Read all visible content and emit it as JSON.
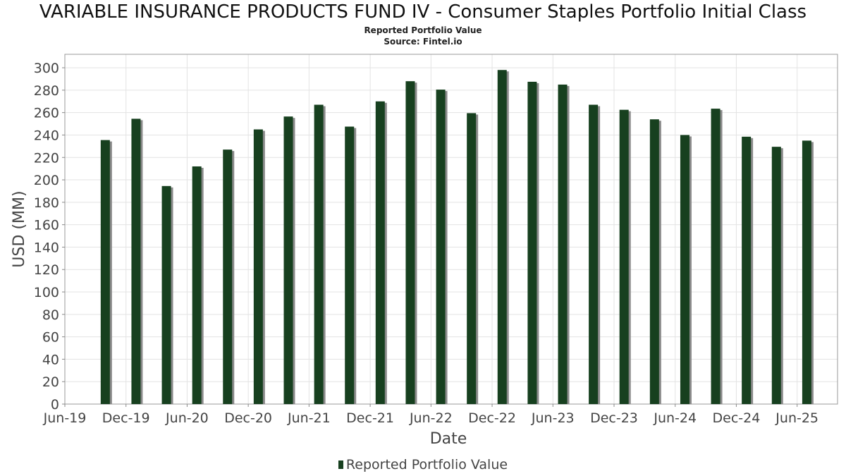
{
  "chart_data": {
    "type": "bar",
    "title": "VARIABLE INSURANCE PRODUCTS FUND IV - Consumer Staples Portfolio Initial Class",
    "subtitle": "Reported Portfolio Value",
    "source": "Source: Fintel.io",
    "xlabel": "Date",
    "ylabel": "USD (MM)",
    "ylim": [
      0,
      312
    ],
    "yticks": [
      0,
      20,
      40,
      60,
      80,
      100,
      120,
      140,
      160,
      180,
      200,
      220,
      240,
      260,
      280,
      300
    ],
    "xlim": [
      "2019-06-01",
      "2025-09-30"
    ],
    "xticks": [
      {
        "label": "Jun-19",
        "date": "2019-06-01"
      },
      {
        "label": "Dec-19",
        "date": "2019-12-01"
      },
      {
        "label": "Jun-20",
        "date": "2020-06-01"
      },
      {
        "label": "Dec-20",
        "date": "2020-12-01"
      },
      {
        "label": "Jun-21",
        "date": "2021-06-01"
      },
      {
        "label": "Dec-21",
        "date": "2021-12-01"
      },
      {
        "label": "Jun-22",
        "date": "2022-06-01"
      },
      {
        "label": "Dec-22",
        "date": "2022-12-01"
      },
      {
        "label": "Jun-23",
        "date": "2023-06-01"
      },
      {
        "label": "Dec-23",
        "date": "2023-12-01"
      },
      {
        "label": "Jun-24",
        "date": "2024-06-01"
      },
      {
        "label": "Dec-24",
        "date": "2024-12-01"
      },
      {
        "label": "Jun-25",
        "date": "2025-06-01"
      }
    ],
    "grid": true,
    "legend_position": "bottom",
    "series": [
      {
        "name": "Reported Portfolio Value",
        "color": "#17401f",
        "points": [
          {
            "x": "2019-09-30",
            "y": 235.5
          },
          {
            "x": "2019-12-31",
            "y": 254.5
          },
          {
            "x": "2020-03-31",
            "y": 194.5
          },
          {
            "x": "2020-06-30",
            "y": 212.0
          },
          {
            "x": "2020-09-30",
            "y": 227.0
          },
          {
            "x": "2020-12-31",
            "y": 245.0
          },
          {
            "x": "2021-03-31",
            "y": 256.5
          },
          {
            "x": "2021-06-30",
            "y": 267.0
          },
          {
            "x": "2021-09-30",
            "y": 247.5
          },
          {
            "x": "2021-12-31",
            "y": 270.0
          },
          {
            "x": "2022-03-31",
            "y": 288.0
          },
          {
            "x": "2022-06-30",
            "y": 280.5
          },
          {
            "x": "2022-09-30",
            "y": 259.5
          },
          {
            "x": "2022-12-31",
            "y": 298.0
          },
          {
            "x": "2023-03-31",
            "y": 287.5
          },
          {
            "x": "2023-06-30",
            "y": 285.0
          },
          {
            "x": "2023-09-30",
            "y": 267.0
          },
          {
            "x": "2023-12-31",
            "y": 262.5
          },
          {
            "x": "2024-03-31",
            "y": 254.0
          },
          {
            "x": "2024-06-30",
            "y": 240.0
          },
          {
            "x": "2024-09-30",
            "y": 263.5
          },
          {
            "x": "2024-12-31",
            "y": 238.5
          },
          {
            "x": "2025-03-31",
            "y": 229.5
          },
          {
            "x": "2025-06-30",
            "y": 235.0
          }
        ]
      }
    ]
  }
}
